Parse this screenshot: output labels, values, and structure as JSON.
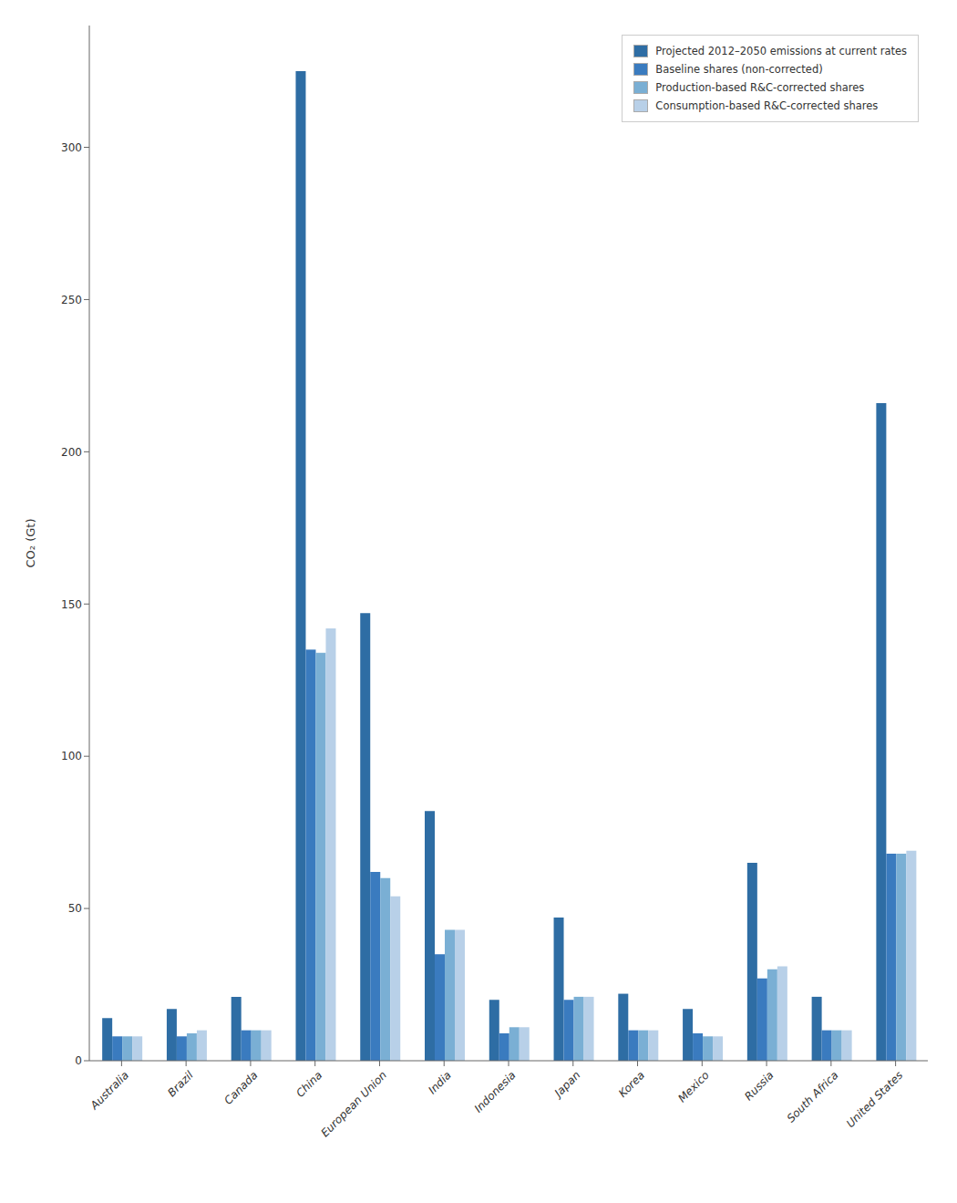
{
  "chart_data": {
    "type": "bar",
    "categories": [
      "Australia",
      "Brazil",
      "Canada",
      "China",
      "European Union",
      "India",
      "Indonesia",
      "Japan",
      "Korea",
      "Mexico",
      "Russia",
      "South Africa",
      "United States"
    ],
    "series": [
      {
        "name": "Projected 2012–2050 emissions at current rates",
        "color": "#2e6da4",
        "values": [
          14,
          17,
          21,
          325,
          147,
          82,
          20,
          47,
          22,
          17,
          65,
          21,
          216
        ]
      },
      {
        "name": "Baseline shares (non-corrected)",
        "color": "#3a7bbf",
        "values": [
          8,
          8,
          10,
          135,
          62,
          35,
          9,
          20,
          10,
          9,
          27,
          10,
          68
        ]
      },
      {
        "name": "Production-based R&C-corrected shares",
        "color": "#7aafd4",
        "values": [
          8,
          9,
          10,
          134,
          60,
          43,
          11,
          21,
          10,
          8,
          30,
          10,
          68
        ]
      },
      {
        "name": "Consumption-based R&C-corrected shares",
        "color": "#b8d0e8",
        "values": [
          8,
          10,
          10,
          142,
          54,
          43,
          11,
          21,
          10,
          8,
          31,
          10,
          69
        ]
      }
    ],
    "ylabel": "CO₂ (Gt)",
    "ylim": [
      0,
      340
    ],
    "yticks": [
      0,
      50,
      100,
      150,
      200,
      250,
      300
    ],
    "grid": false,
    "legend": "upper right"
  }
}
